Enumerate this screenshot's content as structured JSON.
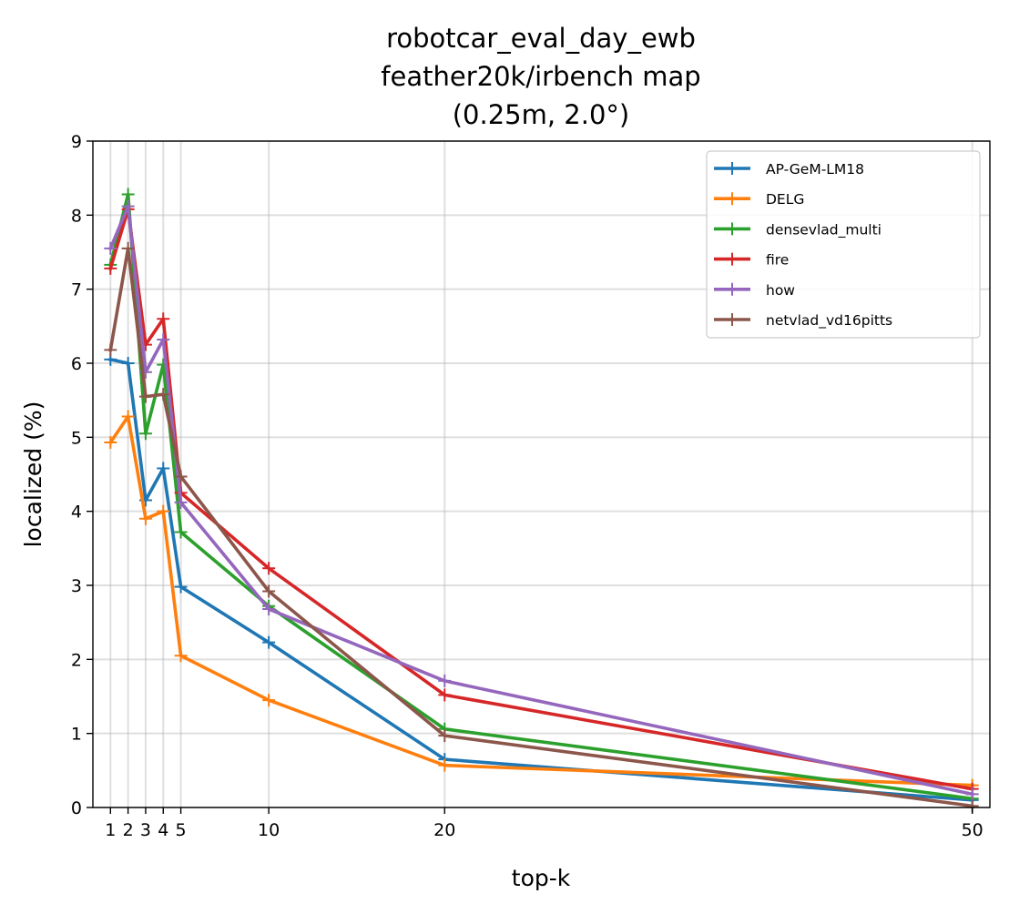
{
  "chart_data": {
    "type": "line",
    "title_lines": [
      "robotcar_eval_day_ewb",
      "feather20k/irbench map",
      "(0.25m, 2.0°)"
    ],
    "xlabel": "top-k",
    "ylabel": "localized (%)",
    "xlim": [
      0,
      51
    ],
    "ylim": [
      0,
      9
    ],
    "x_ticks": [
      1,
      2,
      3,
      4,
      5,
      10,
      20,
      50
    ],
    "y_ticks": [
      0,
      1,
      2,
      3,
      4,
      5,
      6,
      7,
      8,
      9
    ],
    "grid": true,
    "legend_position": "top-right",
    "marker": "+",
    "x": [
      1,
      2,
      3,
      4,
      5,
      10,
      20,
      50
    ],
    "series": [
      {
        "name": "AP-GeM-LM18",
        "color": "#1f77b4",
        "values": [
          6.05,
          6.0,
          4.15,
          4.58,
          2.98,
          2.23,
          0.65,
          0.1
        ]
      },
      {
        "name": "DELG",
        "color": "#ff7f0e",
        "values": [
          4.93,
          5.28,
          3.9,
          4.0,
          2.05,
          1.45,
          0.57,
          0.3
        ]
      },
      {
        "name": "densevlad_multi",
        "color": "#2ca02c",
        "values": [
          7.33,
          8.28,
          5.05,
          5.98,
          3.72,
          2.72,
          1.06,
          0.12
        ]
      },
      {
        "name": "fire",
        "color": "#d62728",
        "values": [
          7.28,
          8.08,
          6.25,
          6.6,
          4.25,
          3.23,
          1.52,
          0.25
        ]
      },
      {
        "name": "how",
        "color": "#9467bd",
        "values": [
          7.55,
          8.12,
          5.88,
          6.32,
          4.12,
          2.68,
          1.71,
          0.18
        ]
      },
      {
        "name": "netvlad_vd16pitts",
        "color": "#8c564b",
        "values": [
          6.18,
          7.55,
          5.55,
          5.58,
          4.47,
          2.92,
          0.97,
          0.02
        ]
      }
    ]
  }
}
